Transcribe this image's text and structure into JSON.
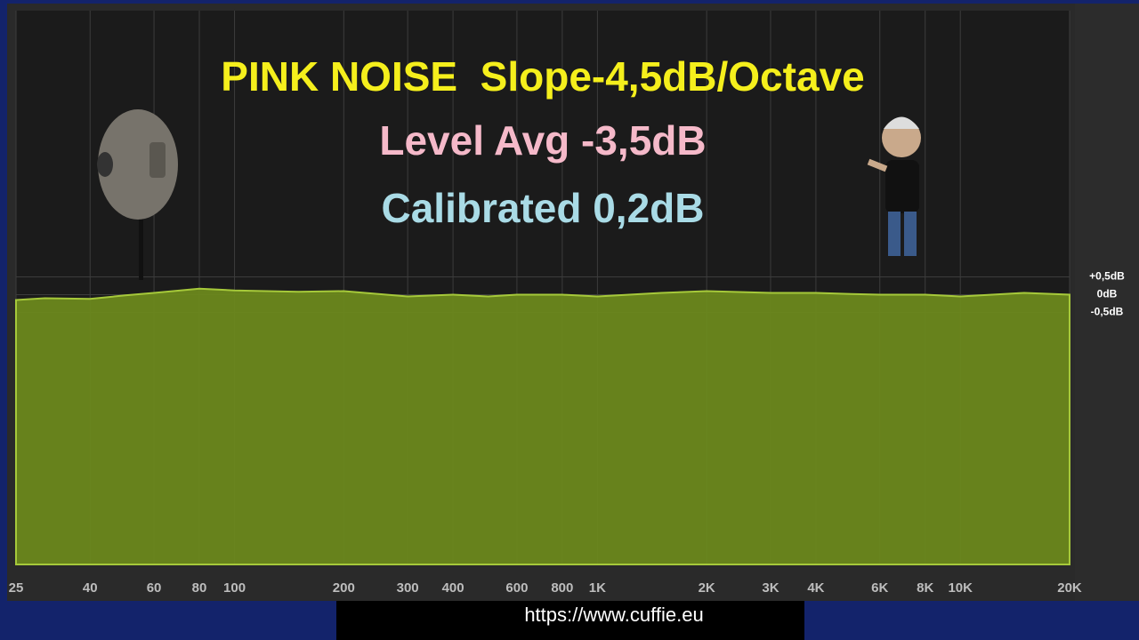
{
  "chart_data": {
    "type": "area",
    "xscale": "log",
    "annotations": [
      {
        "text": "PINK NOISE  Slope-4,5dB/Octave",
        "color": "#f5ef1c"
      },
      {
        "text": "Level Avg -3,5dB",
        "color": "#f5b9c9"
      },
      {
        "text": "Calibrated 0,2dB",
        "color": "#a9dbe6"
      }
    ],
    "x": [
      25,
      30,
      40,
      50,
      60,
      80,
      100,
      150,
      200,
      300,
      400,
      500,
      600,
      800,
      1000,
      1500,
      2000,
      3000,
      4000,
      5000,
      6000,
      8000,
      10000,
      15000,
      20000
    ],
    "series": [
      {
        "color": "#6e8b1c",
        "values": [
          -0.15,
          -0.1,
          -0.12,
          -0.02,
          0.05,
          0.17,
          0.12,
          0.08,
          0.1,
          -0.05,
          0,
          -0.05,
          0,
          0,
          -0.05,
          0.05,
          0.1,
          0.05,
          0.05,
          0.02,
          0,
          0,
          -0.05,
          0.05,
          0
        ]
      }
    ],
    "xlim": [
      25,
      20000
    ],
    "ylim": [
      -7.6,
      8
    ],
    "xticks": [
      25,
      40,
      60,
      80,
      100,
      200,
      300,
      400,
      600,
      800,
      {
        "value": 1000,
        "label": "1K"
      },
      {
        "value": 2000,
        "label": "2K"
      },
      {
        "value": 3000,
        "label": "3K"
      },
      {
        "value": 4000,
        "label": "4K"
      },
      {
        "value": 6000,
        "label": "6K"
      },
      {
        "value": 8000,
        "label": "8K"
      },
      {
        "value": 10000,
        "label": "10K"
      },
      {
        "value": 20000,
        "label": "20K"
      }
    ],
    "yticks": [
      {
        "value": 0.5,
        "label": "+0,5dB"
      },
      {
        "value": 0,
        "label": "0dB"
      },
      {
        "value": -0.5,
        "label": "-0,5dB"
      }
    ],
    "grid": true
  },
  "footer_url": "https://www.cuffie.eu"
}
